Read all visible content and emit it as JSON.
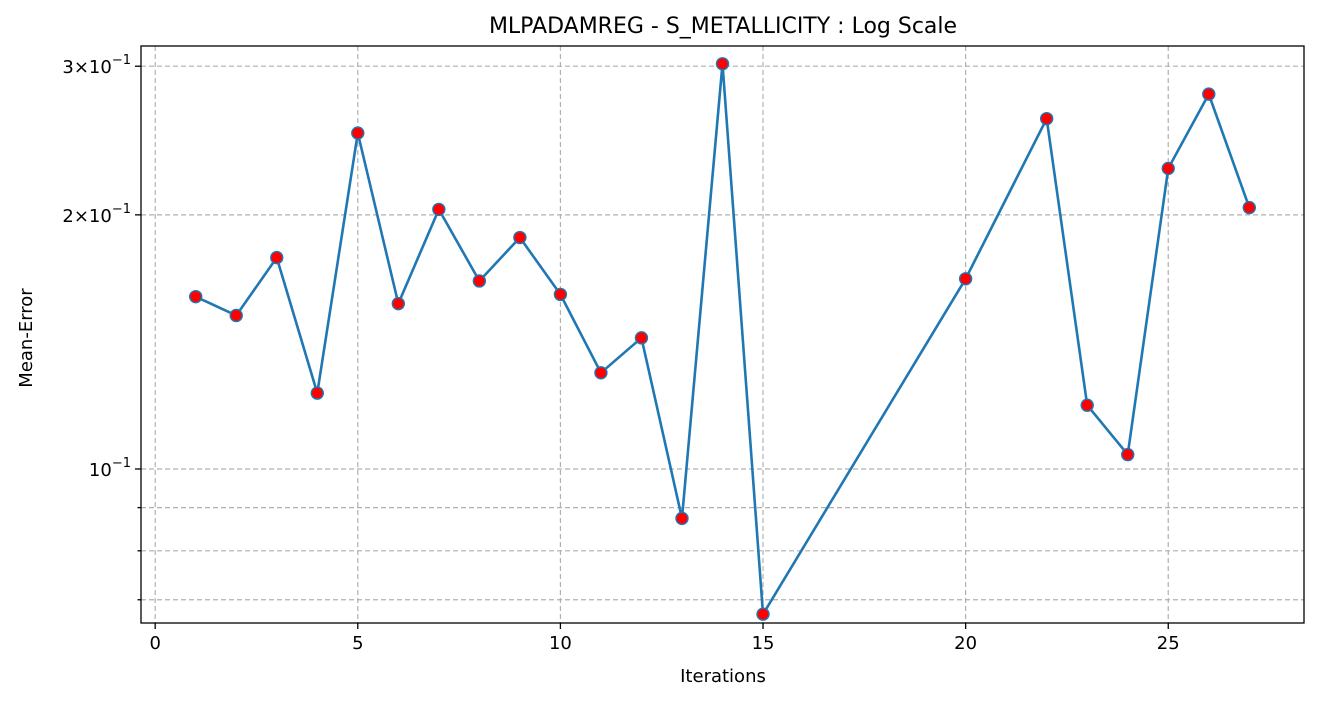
{
  "chart_data": {
    "type": "line",
    "title": "MLPADAMREG - S_METALLICITY : Log Scale",
    "xlabel": "Iterations",
    "ylabel": "Mean-Error",
    "xlim": [
      -0.35,
      28.35
    ],
    "ylim": [
      0.0657,
      0.317
    ],
    "yscale": "log",
    "grid": true,
    "x_ticks": [
      0,
      5,
      10,
      15,
      20,
      25
    ],
    "y_major_ticks": [
      {
        "value": 0.3,
        "label_base": "3×10",
        "label_exp": "−1"
      },
      {
        "value": 0.2,
        "label_base": "2×10",
        "label_exp": "−1"
      },
      {
        "value": 0.1,
        "label_base": "10",
        "label_exp": "−1"
      }
    ],
    "y_minor_ticks": [
      0.09,
      0.08,
      0.07
    ],
    "line_color": "#1f77b4",
    "marker_face_color": "#ff0000",
    "marker_edge_color": "#1f77b4",
    "series": [
      {
        "x": [
          1,
          2,
          3,
          4,
          5,
          6,
          7,
          8,
          9,
          10,
          11,
          12,
          13,
          14,
          15,
          20,
          22,
          23,
          24,
          25,
          26,
          27
        ],
        "values": [
          0.16,
          0.152,
          0.178,
          0.123,
          0.25,
          0.157,
          0.203,
          0.167,
          0.188,
          0.161,
          0.13,
          0.143,
          0.0874,
          0.302,
          0.0673,
          0.168,
          0.26,
          0.119,
          0.104,
          0.227,
          0.278,
          0.204
        ]
      }
    ]
  }
}
